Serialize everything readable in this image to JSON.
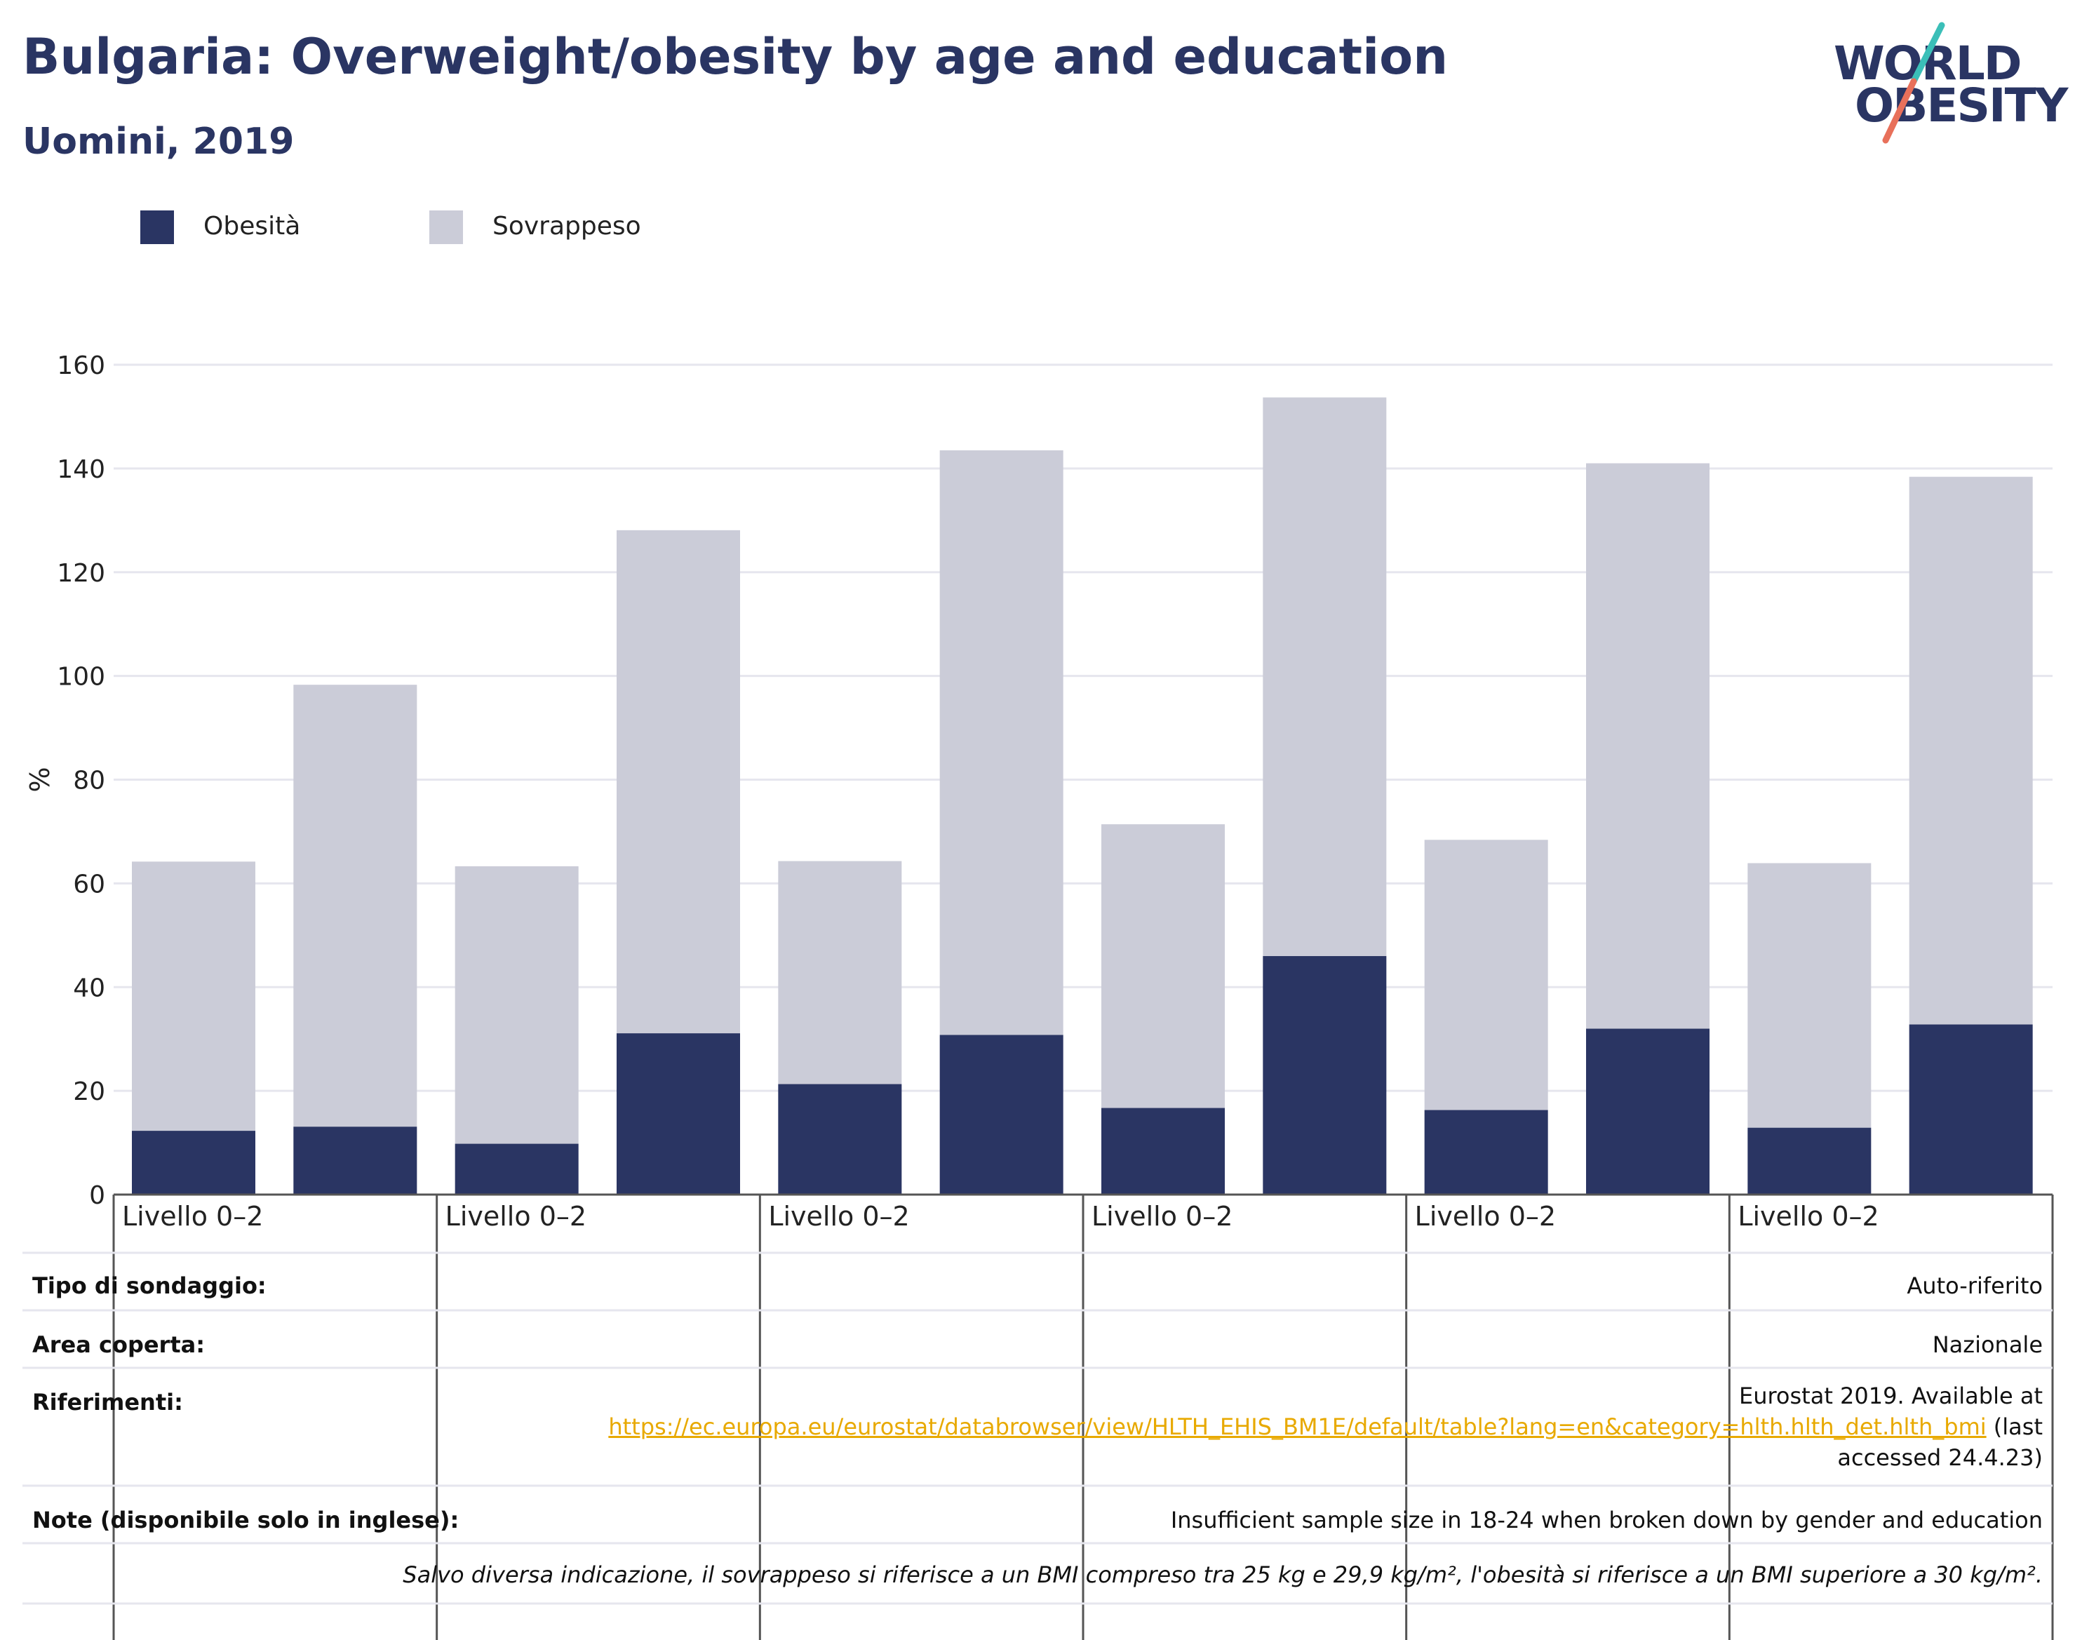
{
  "title": "Bulgaria: Overweight/obesity by age and education",
  "subtitle": "Uomini, 2019",
  "logo": {
    "line1": "WORLD",
    "line2": "OBESITY",
    "accent_teal": "#3bbfb8",
    "accent_red": "#e8705a"
  },
  "colors": {
    "obesity": "#2a3563",
    "overweight": "#cbccd8",
    "grid": "#e6e6ee",
    "link": "#e8a900"
  },
  "legend": [
    {
      "label": "Obesità",
      "color": "#2a3563"
    },
    {
      "label": "Sovrappeso",
      "color": "#cbccd8"
    }
  ],
  "chart_data": {
    "type": "bar",
    "stacked": true,
    "ylabel": "%",
    "ylim": [
      0,
      160
    ],
    "yticks": [
      0,
      20,
      40,
      60,
      80,
      100,
      120,
      140,
      160
    ],
    "grid": true,
    "group_labels": [
      "Livello 0–2",
      "Livello 0–2",
      "Livello 0–2",
      "Livello 0–2",
      "Livello 0–2",
      "Livello 0–2"
    ],
    "bars_per_group": 2,
    "series": [
      {
        "name": "Obesità",
        "values": [
          12.3,
          13.1,
          9.8,
          31.1,
          21.3,
          30.8,
          16.7,
          46.0,
          16.3,
          32.0,
          12.9,
          32.8
        ]
      },
      {
        "name": "Sovrappeso",
        "values": [
          51.9,
          85.2,
          53.5,
          97.0,
          43.0,
          112.7,
          54.7,
          107.7,
          52.1,
          109.0,
          51.0,
          105.6
        ]
      }
    ]
  },
  "table": {
    "survey_type": {
      "label": "Tipo di sondaggio:",
      "value": "Auto-riferito"
    },
    "area": {
      "label": "Area coperta:",
      "value": "Nazionale"
    },
    "references": {
      "label": "Riferimenti:",
      "text_before": "Eurostat 2019. Available at",
      "link": "https://ec.europa.eu/eurostat/databrowser/view/HLTH_EHIS_BM1E/default/table?lang=en&category=hlth.hlth_det.hlth_bmi",
      "text_after_inline": "(last",
      "text_after": "accessed 24.4.23)"
    },
    "notes": {
      "label": "Note (disponibile solo in inglese):",
      "value": "Insufficient sample size in 18-24 when broken down by gender and education"
    },
    "footer": "Salvo diversa indicazione, il sovrappeso si riferisce a un BMI compreso tra 25 kg e 29,9 kg/m², l'obesità si riferisce a un BMI superiore a 30 kg/m²."
  }
}
